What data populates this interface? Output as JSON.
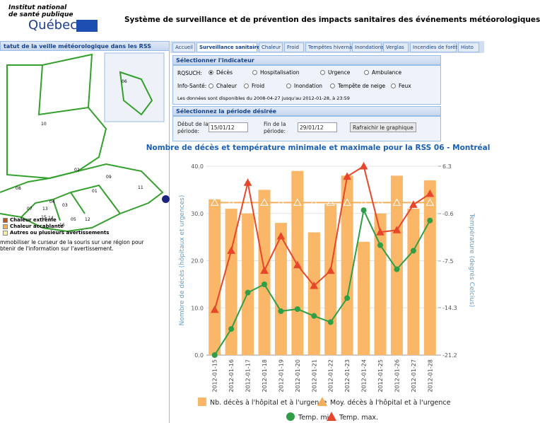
{
  "header": {
    "org": [
      "Institut national",
      "de santé publique"
    ],
    "brand": "Québec",
    "title": "Système de surveillance et de prévention des impacts sanitaires des événements météorologiques"
  },
  "left_panel": {
    "title": "tatut de la veille météorologique dans les RSS",
    "map_labels": [
      "10",
      "02",
      "09",
      "08",
      "04",
      "03",
      "01",
      "11",
      "07",
      "13",
      "15",
      "14",
      "16",
      "05",
      "12",
      "06"
    ],
    "legend": [
      {
        "label": "Chaleur extrême",
        "color": "#c0560f"
      },
      {
        "label": "Chaleur accablante",
        "color": "#f5b24c"
      },
      {
        "label": "Autres ou plusieurs avertissements",
        "color": "#f4f0a0"
      }
    ],
    "message": [
      "mmobiliser le curseur de la souris sur une région pour",
      "btenir de l'information sur l'avertissement."
    ]
  },
  "tabs": [
    "Accueil",
    "Surveillance sanitaire",
    "Chaleur",
    "Froid",
    "Tempêtes hivernales",
    "Inondations",
    "Verglas",
    "Incendies de forêt",
    "Histo"
  ],
  "indicator": {
    "title": "Sélectionner l'indicateur",
    "rqsuch_label": "RQSUCH:",
    "rqsuch": [
      "Décès",
      "Hospitalisation",
      "Urgence",
      "Ambulance"
    ],
    "info_label": "Info-Santé:",
    "info": [
      "Chaleur",
      "Froid",
      "Inondation",
      "Tempête de neige",
      "Feux"
    ],
    "note": "Les données sont disponibles du 2008-04-27 jusqu'au 2012-01-28, à 23:59"
  },
  "period": {
    "title": "Sélectionnez la période désirée",
    "start_label": [
      "Début de la",
      "période:"
    ],
    "start": "15/01/12",
    "end_label": [
      "Fin de la",
      "période:"
    ],
    "end": "29/01/12",
    "button": "Rafraichir le graphique"
  },
  "chart_data": {
    "type": "bar",
    "title": "Nombre de décès et température minimale et maximale pour la RSS 06 - Montréal",
    "ylabel": "Nombre de décès (hôpitaux et urgences)",
    "y2label": "Température (degrés Celcius)",
    "categories": [
      "2012-01-15",
      "2012-01-16",
      "2012-01-17",
      "2012-01-18",
      "2012-01-19",
      "2012-01-20",
      "2012-01-21",
      "2012-01-22",
      "2012-01-23",
      "2012-01-24",
      "2012-01-25",
      "2012-01-26",
      "2012-01-27",
      "2012-01-28"
    ],
    "ylim": [
      0,
      40
    ],
    "yticks": [
      {
        "value": 0,
        "label": "0.0"
      },
      {
        "value": 10,
        "label": "10.0"
      },
      {
        "value": 20,
        "label": "20.0"
      },
      {
        "value": 30,
        "label": "30.0"
      },
      {
        "value": 40,
        "label": "40.0"
      }
    ],
    "y2lim": [
      -21.2,
      6.3
    ],
    "y2ticks": [
      -21.2,
      -14.3,
      -7.5,
      -0.6,
      6.3
    ],
    "grid": true,
    "series": [
      {
        "name": "Nb. décès à l'hôpital et à l'urgence",
        "type": "bar",
        "color": "#f9b767",
        "values": [
          33,
          31,
          30,
          35,
          28,
          39,
          26,
          32,
          38,
          24,
          30,
          38,
          31,
          37
        ]
      },
      {
        "name": "Moy. décès à l'hôpital et à l'urgence",
        "type": "line",
        "marker": "triangle-open",
        "color": "#f5ae5c",
        "values": [
          32.3,
          32.3,
          32.3,
          32.3,
          32.3,
          32.3,
          32.3,
          32.3,
          32.3,
          32.3,
          32.3,
          32.3,
          32.3,
          32.3
        ]
      },
      {
        "name": "Temp. min.",
        "type": "line",
        "axis": "y2",
        "marker": "circle",
        "color": "#2f9e47",
        "values": [
          -21.2,
          -17.4,
          -12.1,
          -10.9,
          -14.8,
          -14.5,
          -15.5,
          -16.4,
          -12.9,
          -0.1,
          -5.2,
          -8.7,
          -6.0,
          -1.6
        ]
      },
      {
        "name": "Temp. max.",
        "type": "line",
        "axis": "y2",
        "marker": "triangle",
        "color": "#e8462a",
        "values": [
          -14.6,
          -6.0,
          3.9,
          -8.9,
          -3.9,
          -8.1,
          -11.1,
          -8.9,
          4.8,
          6.3,
          -3.3,
          -3.0,
          0.7,
          2.3
        ]
      }
    ]
  }
}
